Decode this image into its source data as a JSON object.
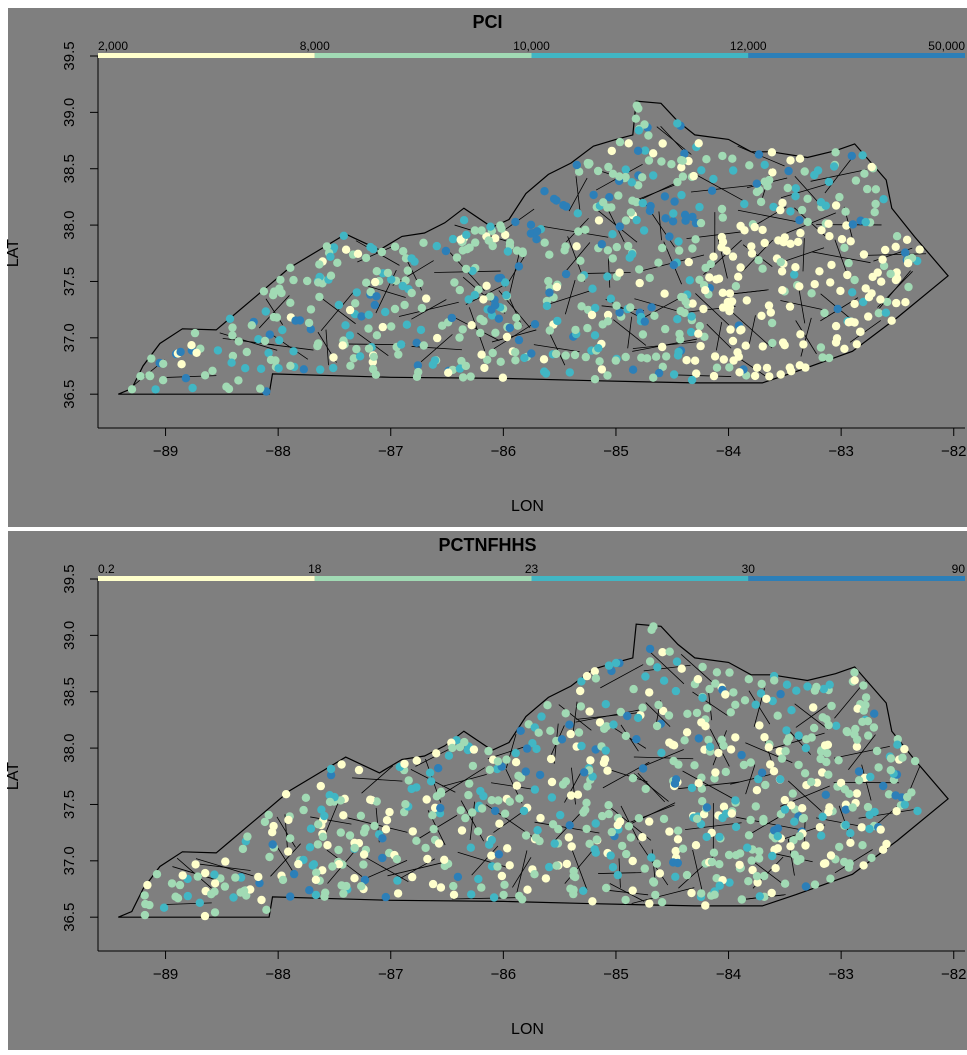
{
  "chart_data": [
    {
      "type": "scatter",
      "title": "PCI",
      "xlabel": "LON",
      "ylabel": "LAT",
      "xlim": [
        -89.6,
        -81.9
      ],
      "ylim": [
        36.2,
        39.5
      ],
      "x_ticks": [
        "-89",
        "-88",
        "-87",
        "-86",
        "-85",
        "-84",
        "-83",
        "-82"
      ],
      "y_ticks": [
        "36.5",
        "37.0",
        "37.5",
        "38.0",
        "38.5",
        "39.0",
        "39.5"
      ],
      "legend": {
        "breaks": [
          "2,000",
          "8,000",
          "10,000",
          "12,000",
          "50,000"
        ],
        "colors": [
          "#ffffcc",
          "#a1dab4",
          "#41b6c4",
          "#2c7fb8"
        ]
      }
    },
    {
      "type": "scatter",
      "title": "PCTNFHHS",
      "xlabel": "LON",
      "ylabel": "LAT",
      "xlim": [
        -89.6,
        -81.9
      ],
      "ylim": [
        36.2,
        39.5
      ],
      "x_ticks": [
        "-89",
        "-88",
        "-87",
        "-86",
        "-85",
        "-84",
        "-83",
        "-82"
      ],
      "y_ticks": [
        "36.5",
        "37.0",
        "37.5",
        "38.0",
        "38.5",
        "39.0",
        "39.5"
      ],
      "legend": {
        "breaks": [
          "0.2",
          "18",
          "23",
          "30",
          "90"
        ],
        "colors": [
          "#ffffcc",
          "#a1dab4",
          "#41b6c4",
          "#2c7fb8"
        ]
      }
    }
  ],
  "map_colors": {
    "background": "#7f7f7f",
    "border": "#000000"
  }
}
